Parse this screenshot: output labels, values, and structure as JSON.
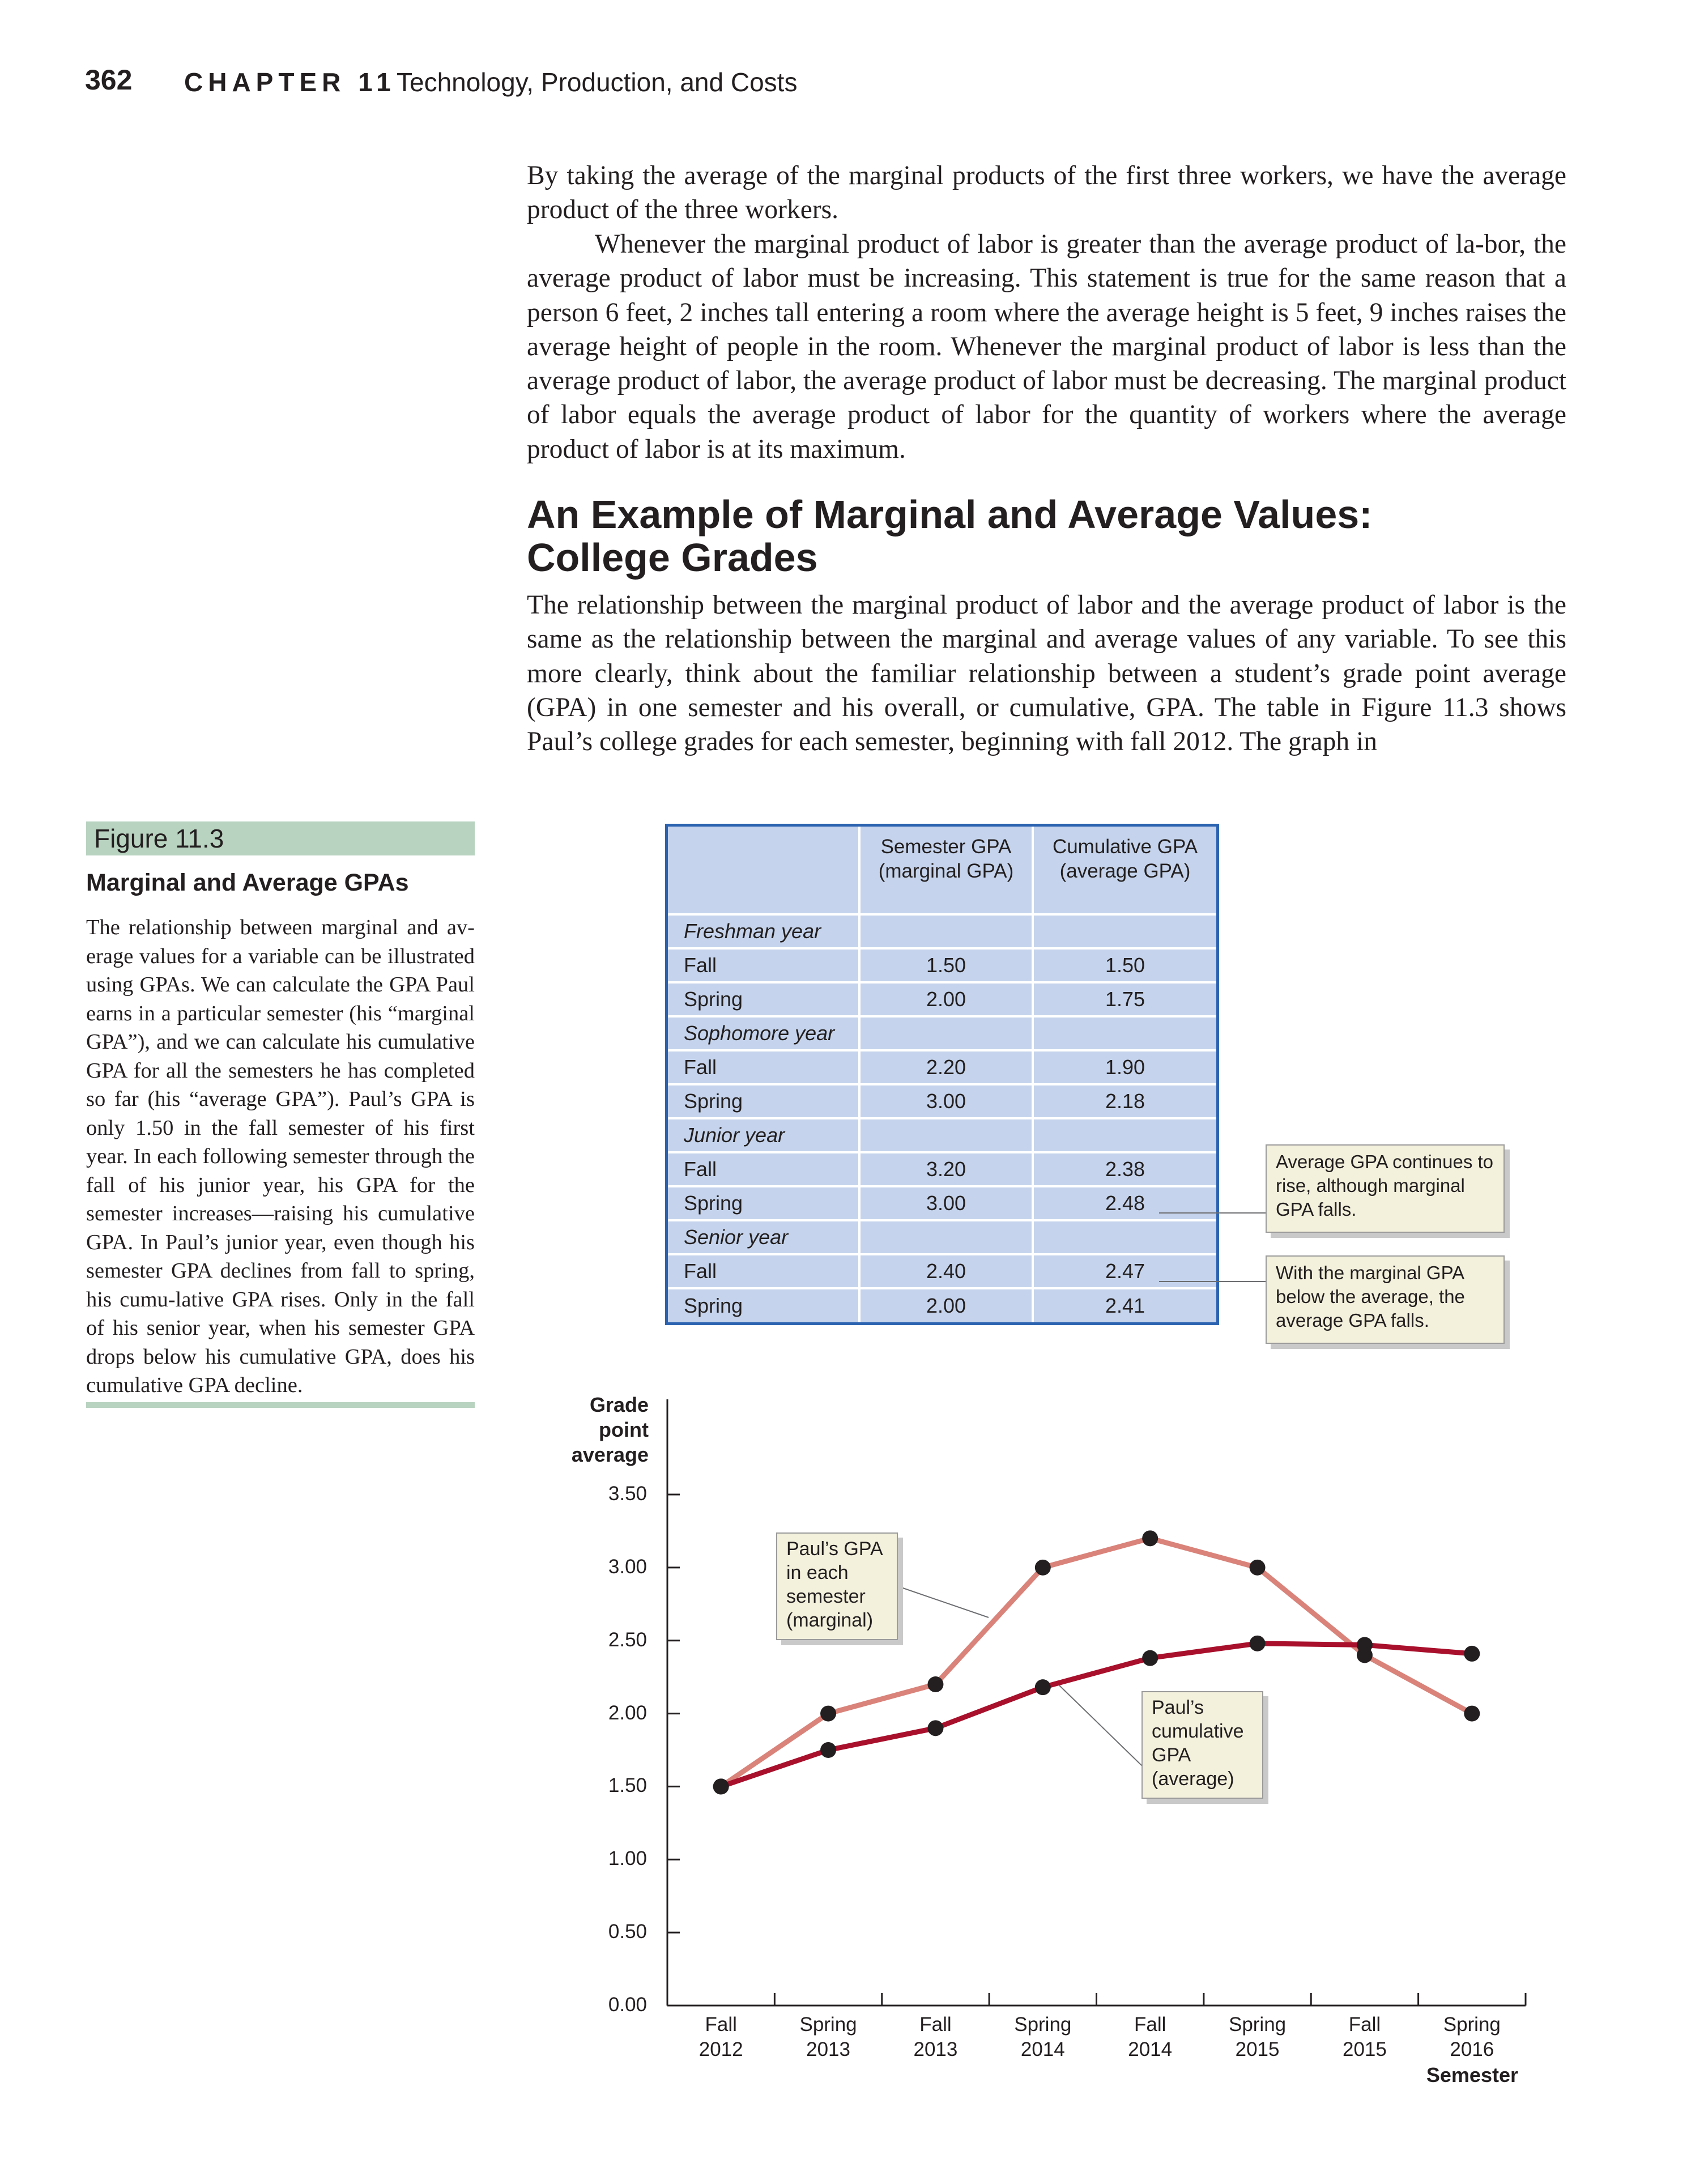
{
  "header": {
    "page_number": "362",
    "chapter_label": "CHAPTER 11",
    "chapter_title": "Technology, Production, and Costs"
  },
  "body": {
    "paragraph_1": "By taking the average of the marginal products of the first three workers, we have the average product of the three workers.",
    "paragraph_2": "Whenever the marginal product of labor is greater than the average product of la-bor, the average product of labor must be increasing. This statement is true for the same reason that a person 6 feet, 2 inches tall entering a room where the average height is 5 feet, 9 inches raises the average height of people in the room. Whenever the marginal product of labor is less than the average product of labor, the average product of labor must be decreasing. The marginal product of labor equals the average product of labor for the quantity of workers where the average product of labor is at its maximum.",
    "section_heading_line_1": "An Example of Marginal and Average Values:",
    "section_heading_line_2": "College Grades",
    "paragraph_3": "The relationship between the marginal product of labor and the average product of labor is the same as the relationship between the marginal and average values of any variable. To see this more clearly, think about the familiar relationship between a student’s grade point average (GPA) in one semester and his overall, or cumulative, GPA. The table in Figure 11.3 shows Paul’s college grades for each semester, beginning with fall 2012. The graph in"
  },
  "figure": {
    "label": "Figure 11.3",
    "title": "Marginal and Average GPAs",
    "caption": "The relationship between marginal and av-erage values for a variable can be illustrated using GPAs. We can calculate the GPA Paul earns in a particular semester (his “marginal GPA”), and we can calculate his cumulative GPA for all the semesters he has completed so far (his “average GPA”). Paul’s GPA is only 1.50 in the fall semester of his first year. In each following semester through the fall of his junior year, his GPA for the semester increases—raising his cumulative GPA. In Paul’s junior year, even though his semester GPA declines from fall to spring, his cumu-lative GPA rises. Only in the fall of his senior year, when his semester GPA drops below his cumulative GPA, does his cumulative GPA decline."
  },
  "table": {
    "col_headers": [
      "",
      "Semester GPA (marginal GPA)",
      "Cumulative GPA (average GPA)"
    ],
    "rows": [
      {
        "label": "Freshman year",
        "semester": "",
        "cumulative": "",
        "is_year": true
      },
      {
        "label": "Fall",
        "semester": "1.50",
        "cumulative": "1.50"
      },
      {
        "label": "Spring",
        "semester": "2.00",
        "cumulative": "1.75"
      },
      {
        "label": "Sophomore year",
        "semester": "",
        "cumulative": "",
        "is_year": true
      },
      {
        "label": "Fall",
        "semester": "2.20",
        "cumulative": "1.90"
      },
      {
        "label": "Spring",
        "semester": "3.00",
        "cumulative": "2.18"
      },
      {
        "label": "Junior year",
        "semester": "",
        "cumulative": "",
        "is_year": true
      },
      {
        "label": "Fall",
        "semester": "3.20",
        "cumulative": "2.38"
      },
      {
        "label": "Spring",
        "semester": "3.00",
        "cumulative": "2.48"
      },
      {
        "label": "Senior year",
        "semester": "",
        "cumulative": "",
        "is_year": true
      },
      {
        "label": "Fall",
        "semester": "2.40",
        "cumulative": "2.47"
      },
      {
        "label": "Spring",
        "semester": "2.00",
        "cumulative": "2.41"
      }
    ]
  },
  "callouts": {
    "table_note_1": "Average GPA continues to rise, although marginal GPA falls.",
    "table_note_2": "With the marginal GPA below the average, the average GPA falls.",
    "chart_note_marginal": "Paul’s GPA in each semester (marginal)",
    "chart_note_average": "Paul’s cumulative GPA (average)"
  },
  "colors": {
    "marginal_line": "#d9837a",
    "average_line": "#a8102c",
    "table_fill": "#c5d4ec",
    "table_border": "#2c63b0",
    "figure_accent": "#b8d3c0",
    "callout_fill": "#f3f0dc"
  },
  "chart_data": {
    "type": "line",
    "title": "",
    "ylabel": "Grade point average",
    "xlabel": "Semester",
    "ylim": [
      0,
      3.5
    ],
    "y_ticks": [
      "0.00",
      "0.50",
      "1.00",
      "1.50",
      "2.00",
      "2.50",
      "3.00",
      "3.50"
    ],
    "categories": [
      "Fall 2012",
      "Spring 2013",
      "Fall 2013",
      "Spring 2014",
      "Fall 2014",
      "Spring 2015",
      "Fall 2015",
      "Spring 2016"
    ],
    "series": [
      {
        "name": "Paul’s GPA in each semester (marginal)",
        "values": [
          1.5,
          2.0,
          2.2,
          3.0,
          3.2,
          3.0,
          2.4,
          2.0
        ]
      },
      {
        "name": "Paul’s cumulative GPA (average)",
        "values": [
          1.5,
          1.75,
          1.9,
          2.18,
          2.38,
          2.48,
          2.47,
          2.41
        ]
      }
    ],
    "grid": false,
    "legend": "none"
  }
}
